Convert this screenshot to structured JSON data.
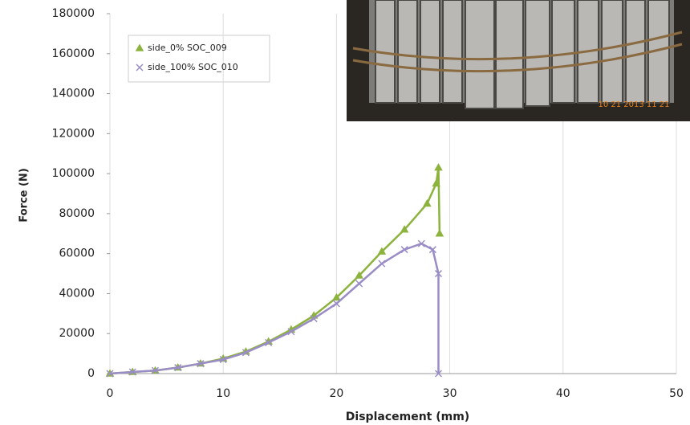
{
  "chart_data": {
    "type": "scatter",
    "x_label": "Displacement (mm)",
    "y_label": "Force (N)",
    "series": [
      {
        "name": "side_0% SOC_009",
        "color": "#8cb33d",
        "marker": "triangle",
        "x": [
          0,
          2,
          4,
          6,
          8,
          10,
          12,
          14,
          16,
          18,
          20,
          22,
          24,
          26,
          28,
          28.8,
          29,
          29.1
        ],
        "values": [
          0,
          800,
          1500,
          3000,
          5000,
          7500,
          11000,
          16000,
          22000,
          29000,
          38000,
          49000,
          61000,
          72000,
          85000,
          95000,
          103000,
          70000
        ]
      },
      {
        "name": "side_100% SOC_010",
        "color": "#9a8cc6",
        "marker": "x",
        "x": [
          0,
          2,
          4,
          6,
          8,
          10,
          12,
          14,
          16,
          18,
          20,
          22,
          24,
          26,
          27.5,
          28.5,
          29,
          29
        ],
        "values": [
          0,
          800,
          1500,
          3000,
          5000,
          7000,
          10500,
          15500,
          21000,
          27500,
          35000,
          45000,
          55000,
          62000,
          65000,
          62000,
          50000,
          0
        ]
      }
    ],
    "xlim": [
      0,
      50
    ],
    "xticks": [
      0,
      10,
      20,
      30,
      40,
      50
    ],
    "ylim": [
      0,
      180000
    ],
    "yticks": [
      0,
      20000,
      40000,
      60000,
      80000,
      100000,
      120000,
      140000,
      160000,
      180000
    ],
    "grid": "x",
    "legend": "upper left",
    "photo_timestamp": "10 21 2013 11 21"
  }
}
